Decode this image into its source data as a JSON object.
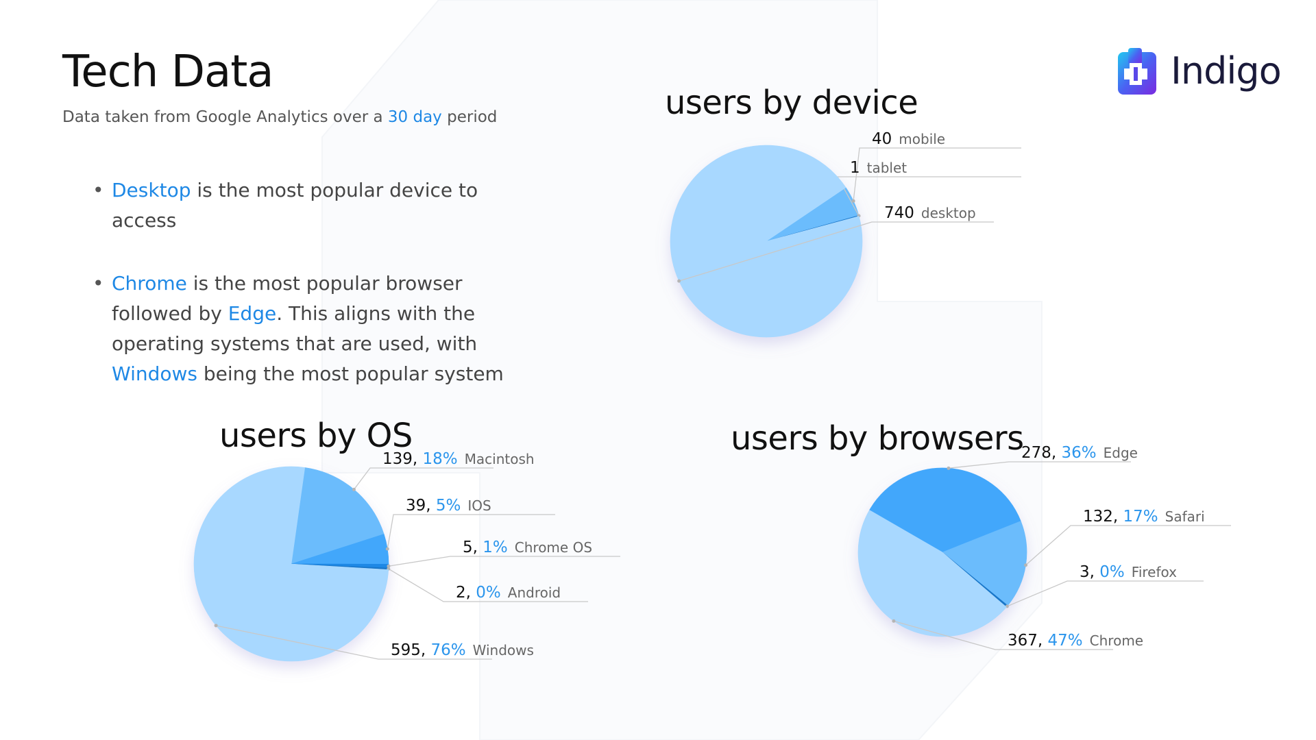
{
  "header": {
    "title": "Tech Data",
    "subtitle_prefix": "Data taken from Google Analytics over a ",
    "subtitle_highlight": "30 day",
    "subtitle_suffix": " period"
  },
  "logo": {
    "text": "Indigo"
  },
  "bullets": [
    {
      "hl": "Desktop",
      "text": " is the most popular device to access"
    },
    {
      "hl": "Chrome",
      "text_a": " is the most popular browser followed by ",
      "hl2": "Edge",
      "text_b": ". This aligns with the operating systems that are used, with ",
      "hl3": "Windows",
      "text_c": " being the most popular system"
    }
  ],
  "colors": {
    "highlight": "#1e88e5",
    "light": "#a8d8ff",
    "mid": "#6bbcfc",
    "strong": "#42a7fb",
    "dark": "#1976c8"
  },
  "chart_data": [
    {
      "type": "pie",
      "title": "users by device",
      "start_angle": 56,
      "slices": [
        {
          "label": "mobile",
          "value": 40,
          "color": "#6bbcfc"
        },
        {
          "label": "tablet",
          "value": 1,
          "color": "#1976c8"
        },
        {
          "label": "desktop",
          "value": 740,
          "color": "#a8d8ff"
        }
      ]
    },
    {
      "type": "pie",
      "title": "users by OS",
      "start_angle": 8,
      "slices": [
        {
          "label": "Macintosh",
          "value": 139,
          "percent": "18%",
          "color": "#6bbcfc"
        },
        {
          "label": "IOS",
          "value": 39,
          "percent": "5%",
          "color": "#42a7fb"
        },
        {
          "label": "Chrome OS",
          "value": 5,
          "percent": "1%",
          "color": "#1e88e5"
        },
        {
          "label": "Android",
          "value": 2,
          "percent": "0%",
          "color": "#1976c8"
        },
        {
          "label": "Windows",
          "value": 595,
          "percent": "76%",
          "color": "#a8d8ff"
        }
      ]
    },
    {
      "type": "pie",
      "title": "users by browsers",
      "start_angle": -60,
      "slices": [
        {
          "label": "Edge",
          "value": 278,
          "percent": "36%",
          "color": "#42a7fb"
        },
        {
          "label": "Safari",
          "value": 132,
          "percent": "17%",
          "color": "#6bbcfc"
        },
        {
          "label": "Firefox",
          "value": 3,
          "percent": "0%",
          "color": "#1976c8"
        },
        {
          "label": "Chrome",
          "value": 367,
          "percent": "47%",
          "color": "#a8d8ff"
        }
      ]
    }
  ]
}
